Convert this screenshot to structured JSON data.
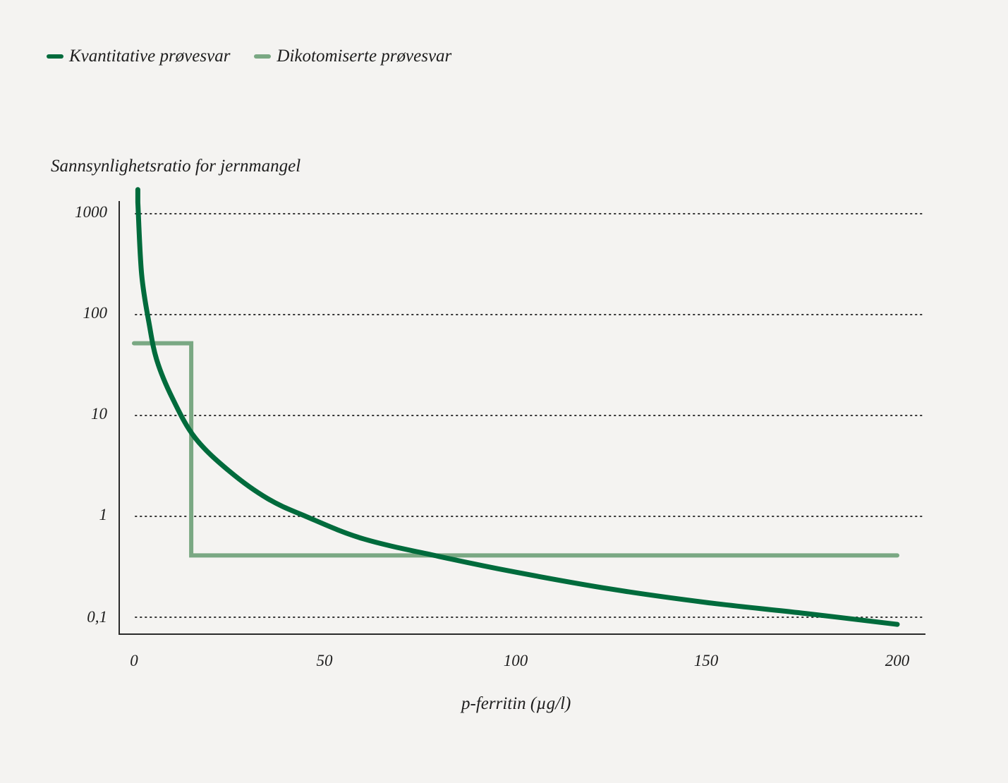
{
  "legend": {
    "items": [
      {
        "label": "Kvantitative prøvesvar",
        "color": "#006b3c"
      },
      {
        "label": "Dikotomiserte prøvesvar",
        "color": "#7aa883"
      }
    ]
  },
  "axes": {
    "ylabel": "Sannsynlighetsratio for jernmangel",
    "xlabel": "p-ferritin (µg/l)",
    "yticks": [
      "1000",
      "100",
      "10",
      "1",
      "0,1"
    ],
    "xticks": [
      "0",
      "50",
      "100",
      "150",
      "200"
    ]
  },
  "chart_data": {
    "type": "line",
    "title": "",
    "xlabel": "p-ferritin (µg/l)",
    "ylabel": "Sannsynlighetsratio for jernmangel",
    "xlim": [
      0,
      200
    ],
    "ylim": [
      0.1,
      1000
    ],
    "yscale": "log",
    "grid": "horizontal dotted",
    "legend_position": "top-left",
    "x_ticks": [
      0,
      50,
      100,
      150,
      200
    ],
    "y_ticks": [
      1000,
      100,
      10,
      1,
      0.1
    ],
    "series": [
      {
        "name": "Kvantitative prøvesvar",
        "color": "#006b3c",
        "x": [
          1,
          2,
          4,
          6,
          10,
          16,
          25,
          35,
          45,
          60,
          80,
          100,
          125,
          150,
          175,
          200
        ],
        "y": [
          1300,
          250,
          80,
          35,
          15,
          6,
          2.8,
          1.5,
          1.0,
          0.6,
          0.4,
          0.28,
          0.19,
          0.14,
          0.11,
          0.085
        ]
      },
      {
        "name": "Dikotomiserte prøvesvar",
        "color": "#7aa883",
        "x": [
          0,
          15,
          15,
          200
        ],
        "y": [
          52,
          52,
          0.41,
          0.41
        ]
      }
    ]
  }
}
